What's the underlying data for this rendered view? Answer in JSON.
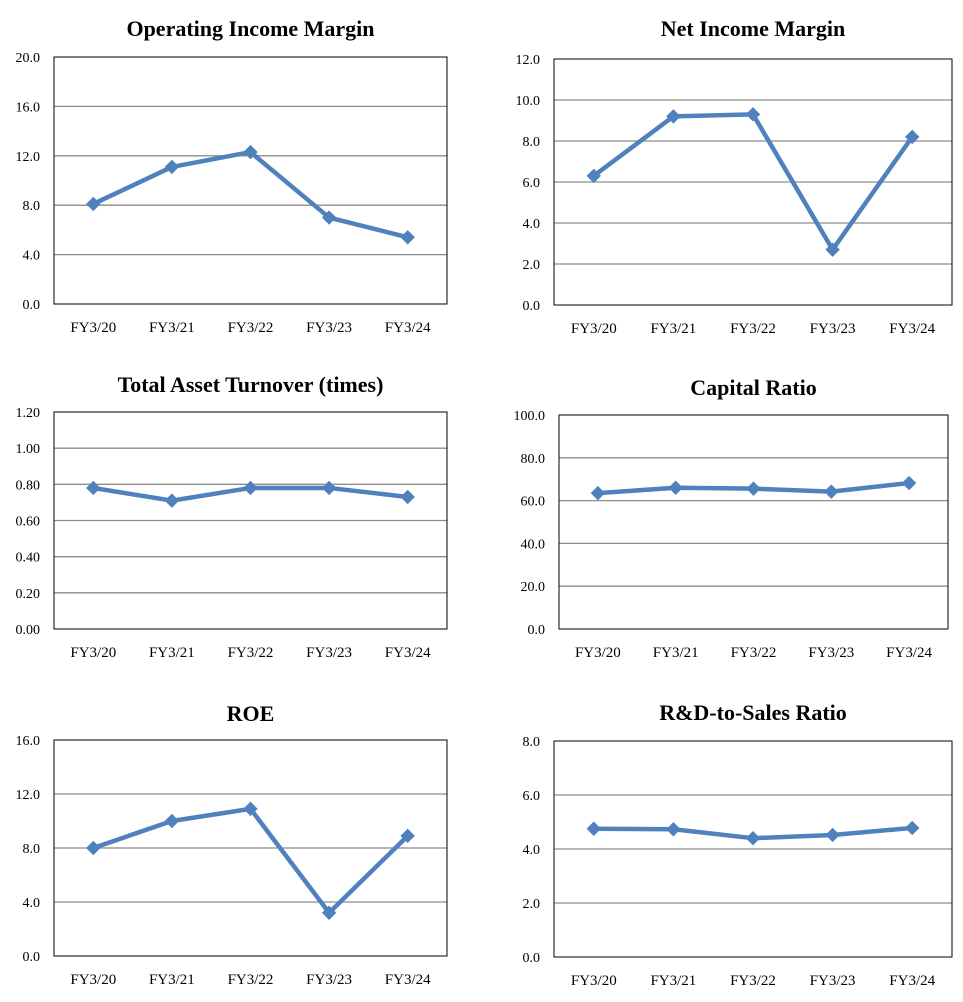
{
  "chart_data": [
    {
      "type": "line",
      "title": "Operating Income Margin",
      "categories": [
        "FY3/20",
        "FY3/21",
        "FY3/22",
        "FY3/23",
        "FY3/24"
      ],
      "series": [
        {
          "values": [
            8.1,
            11.1,
            12.3,
            7.0,
            5.4
          ]
        }
      ],
      "ylim": [
        0,
        20
      ],
      "yticks": [
        "0.0",
        "4.0",
        "8.0",
        "12.0",
        "16.0",
        "20.0"
      ],
      "grid": true,
      "line_color": "#4F81BD"
    },
    {
      "type": "line",
      "title": "Net Income Margin",
      "categories": [
        "FY3/20",
        "FY3/21",
        "FY3/22",
        "FY3/23",
        "FY3/24"
      ],
      "series": [
        {
          "values": [
            6.3,
            9.2,
            9.3,
            2.7,
            8.2
          ]
        }
      ],
      "ylim": [
        0,
        12
      ],
      "yticks": [
        "0.0",
        "2.0",
        "4.0",
        "6.0",
        "8.0",
        "10.0",
        "12.0"
      ],
      "grid": true,
      "line_color": "#4F81BD"
    },
    {
      "type": "line",
      "title": "Total Asset Turnover (times)",
      "categories": [
        "FY3/20",
        "FY3/21",
        "FY3/22",
        "FY3/23",
        "FY3/24"
      ],
      "series": [
        {
          "values": [
            0.78,
            0.71,
            0.78,
            0.78,
            0.73
          ]
        }
      ],
      "ylim": [
        0,
        1.2
      ],
      "yticks": [
        "0.00",
        "0.20",
        "0.40",
        "0.60",
        "0.80",
        "1.00",
        "1.20"
      ],
      "grid": true,
      "line_color": "#4F81BD"
    },
    {
      "type": "line",
      "title": "Capital Ratio",
      "categories": [
        "FY3/20",
        "FY3/21",
        "FY3/22",
        "FY3/23",
        "FY3/24"
      ],
      "series": [
        {
          "values": [
            63.5,
            66.0,
            65.6,
            64.2,
            68.2
          ]
        }
      ],
      "ylim": [
        0,
        100
      ],
      "yticks": [
        "0.0",
        "20.0",
        "40.0",
        "60.0",
        "80.0",
        "100.0"
      ],
      "grid": true,
      "line_color": "#4F81BD"
    },
    {
      "type": "line",
      "title": "ROE",
      "categories": [
        "FY3/20",
        "FY3/21",
        "FY3/22",
        "FY3/23",
        "FY3/24"
      ],
      "series": [
        {
          "values": [
            8.0,
            10.0,
            10.9,
            3.2,
            8.9
          ]
        }
      ],
      "ylim": [
        0,
        16
      ],
      "yticks": [
        "0.0",
        "4.0",
        "8.0",
        "12.0",
        "16.0"
      ],
      "grid": true,
      "line_color": "#4F81BD"
    },
    {
      "type": "line",
      "title": "R&D-to-Sales Ratio",
      "categories": [
        "FY3/20",
        "FY3/21",
        "FY3/22",
        "FY3/23",
        "FY3/24"
      ],
      "series": [
        {
          "values": [
            4.75,
            4.73,
            4.4,
            4.52,
            4.78
          ]
        }
      ],
      "ylim": [
        0,
        8
      ],
      "yticks": [
        "0.0",
        "2.0",
        "4.0",
        "6.0",
        "8.0"
      ],
      "grid": true,
      "line_color": "#4F81BD"
    }
  ]
}
